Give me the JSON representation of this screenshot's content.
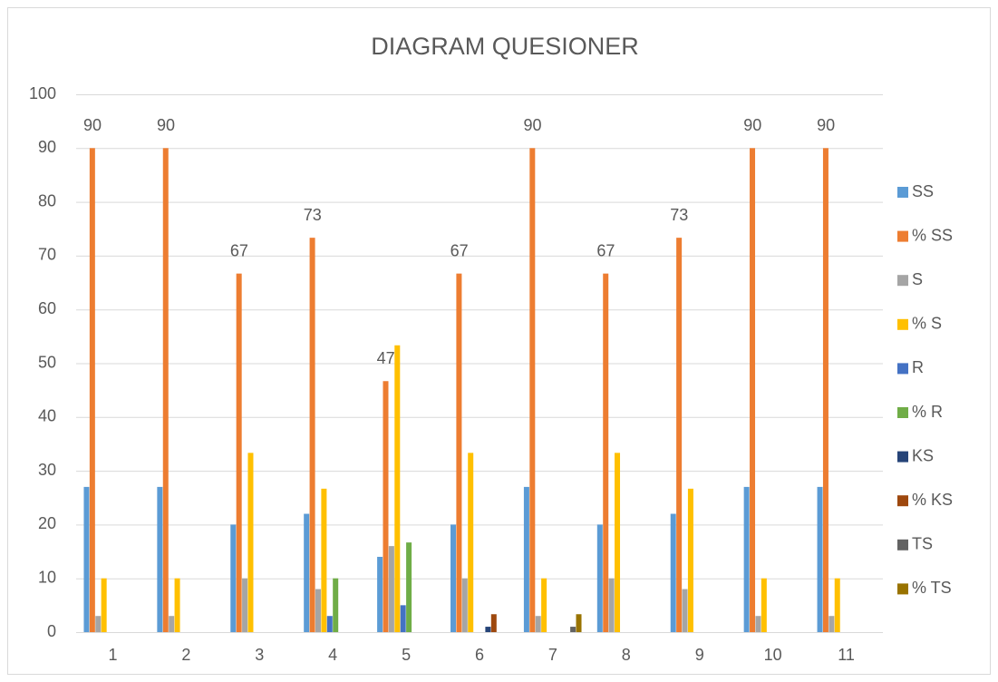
{
  "chart_data": {
    "type": "bar",
    "title": "DIAGRAM QUESIONER",
    "categories": [
      "1",
      "2",
      "3",
      "4",
      "5",
      "6",
      "7",
      "8",
      "9",
      "10",
      "11"
    ],
    "series": [
      {
        "name": "SS",
        "color": "#5b9bd5",
        "values": [
          27,
          27,
          20,
          22,
          14,
          20,
          27,
          20,
          22,
          27,
          27
        ]
      },
      {
        "name": "% SS",
        "color": "#ed7d31",
        "values": [
          90,
          90,
          66.67,
          73.33,
          46.67,
          66.67,
          90,
          66.67,
          73.33,
          90,
          90
        ],
        "value_labels": [
          "90",
          "90",
          "67",
          "73",
          "47",
          "67",
          "90",
          "67",
          "73",
          "90",
          "90"
        ]
      },
      {
        "name": "S",
        "color": "#a5a5a5",
        "values": [
          3,
          3,
          10,
          8,
          16,
          10,
          3,
          10,
          8,
          3,
          3
        ]
      },
      {
        "name": "% S",
        "color": "#ffc000",
        "values": [
          10,
          10,
          33.33,
          26.67,
          53.33,
          33.33,
          10,
          33.33,
          26.67,
          10,
          10
        ]
      },
      {
        "name": "R",
        "color": "#4472c4",
        "values": [
          0,
          0,
          0,
          3,
          5,
          0,
          0,
          0,
          0,
          0,
          0
        ]
      },
      {
        "name": "% R",
        "color": "#70ad47",
        "values": [
          0,
          0,
          0,
          10,
          16.67,
          0,
          0,
          0,
          0,
          0,
          0
        ]
      },
      {
        "name": "KS",
        "color": "#264478",
        "values": [
          0,
          0,
          0,
          0,
          0,
          1,
          0,
          0,
          0,
          0,
          0
        ]
      },
      {
        "name": "% KS",
        "color": "#9e480e",
        "values": [
          0,
          0,
          0,
          0,
          0,
          3.33,
          0,
          0,
          0,
          0,
          0
        ]
      },
      {
        "name": "TS",
        "color": "#636363",
        "values": [
          0,
          0,
          0,
          0,
          0,
          0,
          1,
          0,
          0,
          0,
          0
        ]
      },
      {
        "name": "% TS",
        "color": "#997300",
        "values": [
          0,
          0,
          0,
          0,
          0,
          0,
          3.33,
          0,
          0,
          0,
          0
        ]
      }
    ],
    "ylim": [
      0,
      100
    ],
    "yticks": [
      0,
      10,
      20,
      30,
      40,
      50,
      60,
      70,
      80,
      90,
      100
    ],
    "grid": true,
    "legend": "right"
  }
}
